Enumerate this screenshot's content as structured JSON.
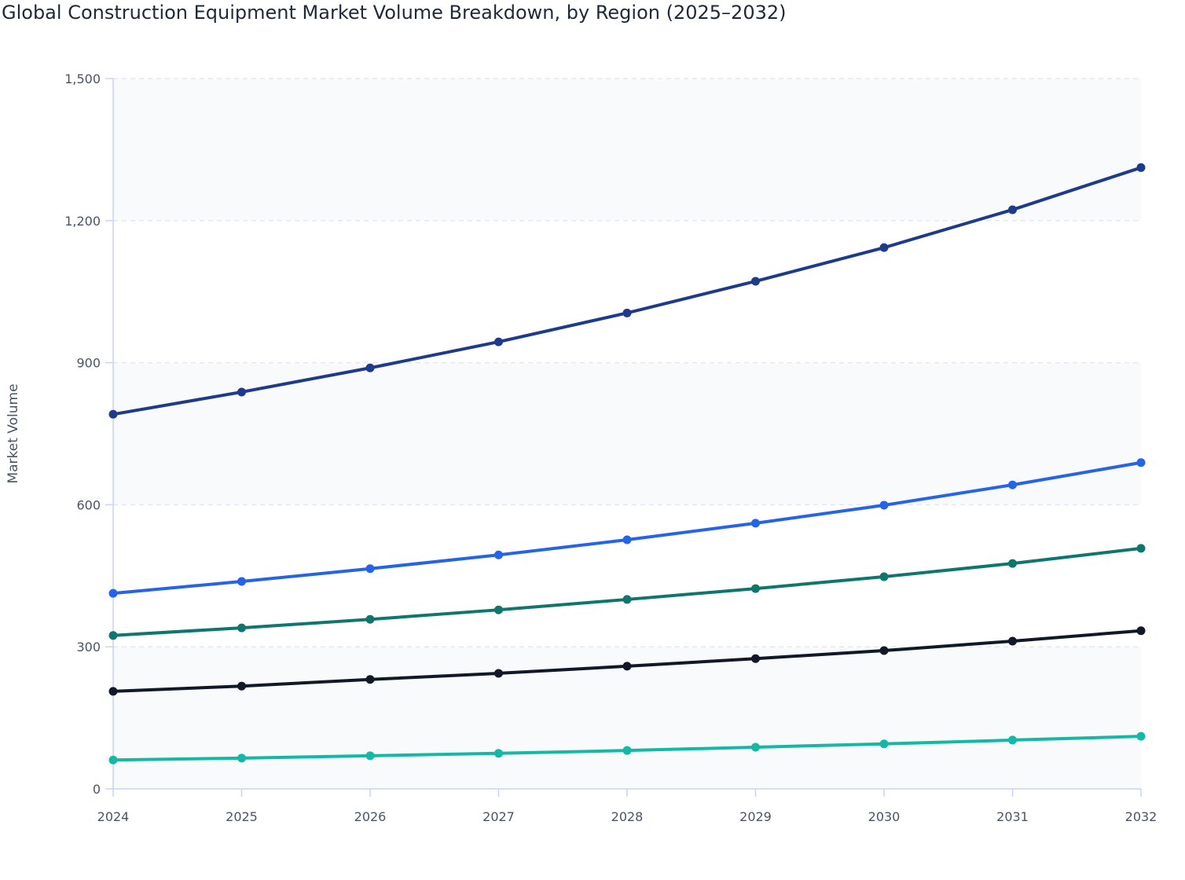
{
  "chart_data": {
    "type": "line",
    "title": "Global Construction Equipment Market Volume Breakdown, by Region (2025–2032)",
    "xlabel": "",
    "ylabel": "Market Volume",
    "x": [
      2024,
      2025,
      2026,
      2027,
      2028,
      2029,
      2030,
      2031,
      2032
    ],
    "x_tick_labels": [
      "2024",
      "2025",
      "2026",
      "2027",
      "2028",
      "2029",
      "2030",
      "2031",
      "2032"
    ],
    "ylim": [
      0,
      1500
    ],
    "y_ticks": [
      0,
      300,
      600,
      900,
      1200,
      1500
    ],
    "y_tick_labels": [
      "0",
      "300",
      "600",
      "900",
      "1,200",
      "1,500"
    ],
    "grid": true,
    "legend": "none",
    "series": [
      {
        "color": "#1e3a8a",
        "values": [
          791,
          838,
          889,
          944,
          1005,
          1072,
          1143,
          1223,
          1312
        ]
      },
      {
        "color": "#2563eb",
        "values": [
          413,
          438,
          465,
          494,
          526,
          561,
          599,
          642,
          689
        ]
      },
      {
        "color": "#0f766e",
        "values": [
          324,
          340,
          358,
          378,
          400,
          423,
          448,
          476,
          508
        ]
      },
      {
        "color": "#111827",
        "values": [
          206,
          217,
          231,
          244,
          259,
          275,
          292,
          312,
          334
        ]
      },
      {
        "color": "#14b8a6",
        "values": [
          61,
          65,
          70,
          75,
          81,
          88,
          95,
          103,
          111
        ]
      }
    ]
  }
}
